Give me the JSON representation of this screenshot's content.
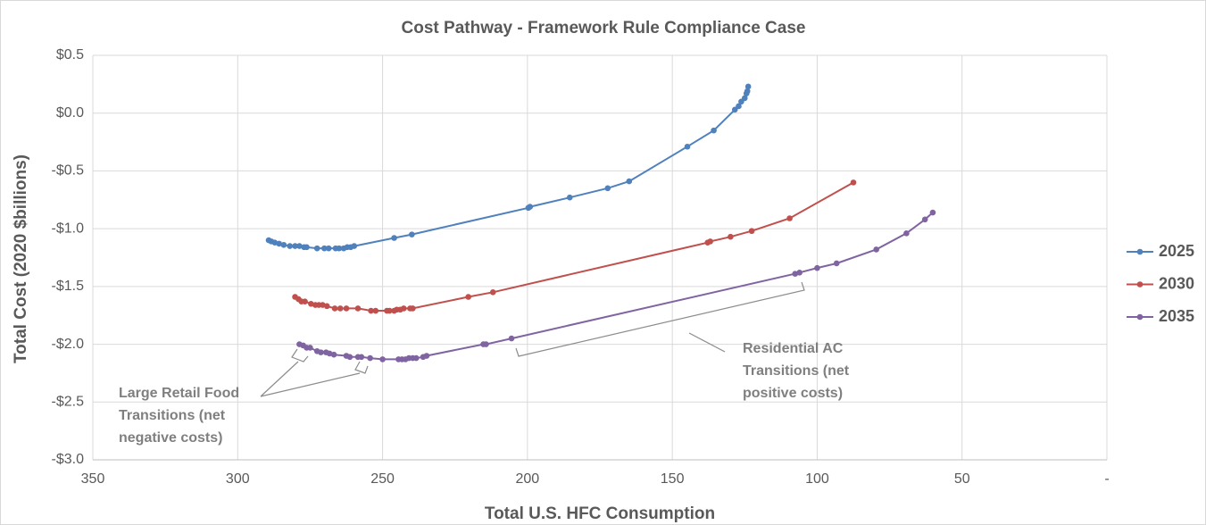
{
  "chart_data": {
    "type": "line",
    "title": "Cost Pathway - Framework Rule Compliance Case",
    "x_label": "Total U.S. HFC Consumption",
    "y_label": "Total Cost (2020 $billions)",
    "xlim": [
      350,
      0
    ],
    "ylim": [
      -3.0,
      0.5
    ],
    "xticks": [
      350,
      300,
      250,
      200,
      150,
      100,
      50,
      {
        "value": 0,
        "label": "-"
      }
    ],
    "yticks": [
      {
        "value": 0.5,
        "label": "$0.5"
      },
      {
        "value": 0.0,
        "label": "$0.0"
      },
      {
        "value": -0.5,
        "label": "-$0.5"
      },
      {
        "value": -1.0,
        "label": "-$1.0"
      },
      {
        "value": -1.5,
        "label": "-$1.5"
      },
      {
        "value": -2.0,
        "label": "-$2.0"
      },
      {
        "value": -2.5,
        "label": "-$2.5"
      },
      {
        "value": -3.0,
        "label": "-$3.0"
      }
    ],
    "grid": true,
    "legend": "right",
    "series": [
      {
        "name": "2025",
        "color": "#4f81bd",
        "x": [
          289.3,
          288.4,
          287.2,
          285.7,
          284.1,
          282.0,
          280.2,
          278.7,
          277.1,
          276.2,
          272.6,
          270.1,
          268.6,
          266.2,
          265.0,
          263.4,
          262.2,
          261.0,
          259.8,
          246.0,
          239.9,
          199.7,
          199.1,
          185.4,
          172.3,
          164.9,
          144.8,
          135.7,
          128.4,
          127.1,
          126.2,
          125.0,
          124.4,
          124.1,
          123.8
        ],
        "values": [
          -1.1,
          -1.11,
          -1.12,
          -1.13,
          -1.14,
          -1.15,
          -1.15,
          -1.15,
          -1.16,
          -1.16,
          -1.17,
          -1.17,
          -1.17,
          -1.17,
          -1.17,
          -1.17,
          -1.16,
          -1.16,
          -1.15,
          -1.08,
          -1.05,
          -0.82,
          -0.81,
          -0.73,
          -0.65,
          -0.59,
          -0.29,
          -0.15,
          0.03,
          0.06,
          0.1,
          0.13,
          0.17,
          0.19,
          0.23
        ]
      },
      {
        "name": "2030",
        "color": "#c0504d",
        "x": [
          280.2,
          279.0,
          278.0,
          276.8,
          274.7,
          273.2,
          272.0,
          270.7,
          269.2,
          266.5,
          264.6,
          262.5,
          258.5,
          254.0,
          252.4,
          248.5,
          247.6,
          246.0,
          245.1,
          243.9,
          242.7,
          240.5,
          239.6,
          220.4,
          211.9,
          137.8,
          136.9,
          129.9,
          122.6,
          109.5,
          87.5
        ],
        "values": [
          -1.59,
          -1.61,
          -1.63,
          -1.63,
          -1.65,
          -1.66,
          -1.66,
          -1.66,
          -1.67,
          -1.69,
          -1.69,
          -1.69,
          -1.69,
          -1.71,
          -1.71,
          -1.71,
          -1.71,
          -1.71,
          -1.7,
          -1.7,
          -1.69,
          -1.69,
          -1.69,
          -1.59,
          -1.55,
          -1.12,
          -1.11,
          -1.07,
          -1.02,
          -0.91,
          -0.6
        ]
      },
      {
        "name": "2035",
        "color": "#8064a2",
        "x": [
          278.7,
          277.4,
          276.2,
          275.0,
          272.6,
          271.3,
          269.5,
          268.3,
          266.8,
          262.5,
          261.3,
          258.5,
          257.3,
          254.3,
          250.0,
          244.5,
          243.3,
          242.1,
          240.9,
          239.6,
          238.4,
          236.0,
          234.8,
          215.2,
          214.3,
          205.5,
          107.6,
          106.1,
          100.0,
          93.3,
          79.6,
          69.2,
          62.8,
          60.1
        ],
        "values": [
          -2.0,
          -2.01,
          -2.03,
          -2.03,
          -2.06,
          -2.07,
          -2.07,
          -2.08,
          -2.09,
          -2.1,
          -2.11,
          -2.11,
          -2.11,
          -2.12,
          -2.13,
          -2.13,
          -2.13,
          -2.13,
          -2.12,
          -2.12,
          -2.12,
          -2.11,
          -2.1,
          -2.0,
          -2.0,
          -1.95,
          -1.39,
          -1.38,
          -1.34,
          -1.3,
          -1.18,
          -1.04,
          -0.92,
          -0.86
        ]
      }
    ],
    "annotations": [
      {
        "lines": [
          "Large Retail Food",
          "Transitions (net",
          "negative costs)"
        ]
      },
      {
        "lines": [
          "Residential AC",
          "Transitions (net",
          "positive costs)"
        ]
      }
    ]
  }
}
